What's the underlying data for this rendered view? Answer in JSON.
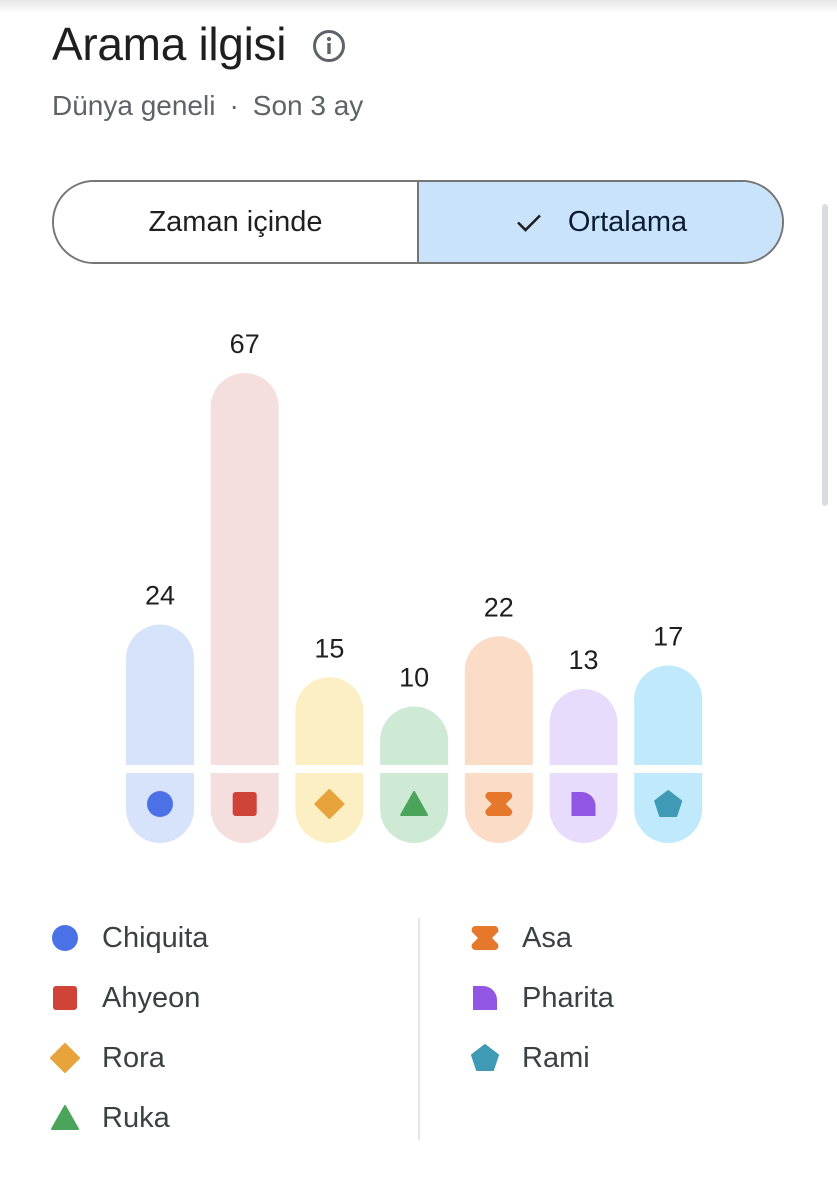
{
  "header": {
    "title": "Arama ilgisi",
    "region": "Dünya geneli",
    "separator": "·",
    "period": "Son 3 ay"
  },
  "toggle": {
    "option_time": "Zaman içinde",
    "option_average": "Ortalama",
    "selected": "Ortalama"
  },
  "chart_data": {
    "type": "bar",
    "title": "",
    "xlabel": "",
    "ylabel": "",
    "categories": [
      "Chiquita",
      "Ahyeon",
      "Rora",
      "Ruka",
      "Asa",
      "Pharita",
      "Rami"
    ],
    "values": [
      24,
      67,
      15,
      10,
      22,
      13,
      17
    ],
    "value_labels": [
      "24",
      "67",
      "15",
      "10",
      "22",
      "13",
      "17"
    ],
    "legend_placement": "bottom",
    "colors": [
      "#4a72e6",
      "#cf4338",
      "#e8a33a",
      "#4aa55a",
      "#e5782a",
      "#9156e4",
      "#3f9ab5"
    ],
    "fills": [
      "#d6e3fb",
      "#f5dede",
      "#fcefc4",
      "#ceead5",
      "#fbdcc7",
      "#e7dcfb",
      "#c0eafb"
    ],
    "icons": [
      "circle-icon",
      "square-icon",
      "diamond-icon",
      "triangle-icon",
      "bowtie-icon",
      "quarter-circle-icon",
      "pentagon-icon"
    ]
  },
  "legend": {
    "items": [
      {
        "label": "Chiquita",
        "icon": "circle-icon"
      },
      {
        "label": "Ahyeon",
        "icon": "square-icon"
      },
      {
        "label": "Rora",
        "icon": "diamond-icon"
      },
      {
        "label": "Ruka",
        "icon": "triangle-icon"
      },
      {
        "label": "Asa",
        "icon": "bowtie-icon"
      },
      {
        "label": "Pharita",
        "icon": "quarter-circle-icon"
      },
      {
        "label": "Rami",
        "icon": "pentagon-icon"
      }
    ]
  }
}
